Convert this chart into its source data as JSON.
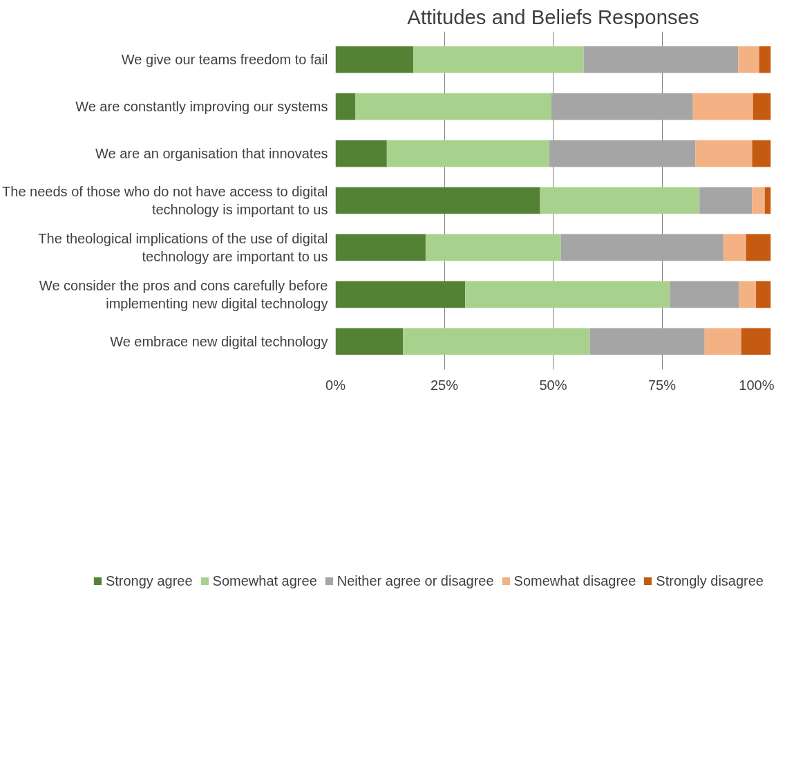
{
  "chart_data": {
    "type": "bar",
    "orientation": "horizontal",
    "stacked": true,
    "title": "Attitudes and Beliefs Responses",
    "categories": [
      "We give our teams freedom to fail",
      "We are constantly improving our systems",
      "We are an organisation that innovates",
      "The needs of those who do not have access to digital technology is important to us",
      "The theological implications of the use of digital technology are important to us",
      "We consider the pros and cons carefully before implementing new digital technology",
      "We embrace new digital technology"
    ],
    "series": [
      {
        "name": "Strongy agree",
        "color": "#548235",
        "values": [
          17.9,
          4.6,
          11.8,
          47.0,
          20.7,
          29.8,
          15.5
        ]
      },
      {
        "name": "Somewhat agree",
        "color": "#a9d18e",
        "values": [
          39.1,
          45.0,
          37.3,
          36.6,
          31.1,
          47.0,
          42.9
        ]
      },
      {
        "name": "Neither agree or disagree",
        "color": "#a5a5a5",
        "values": [
          35.5,
          32.5,
          33.6,
          12.1,
          37.3,
          15.9,
          26.4
        ]
      },
      {
        "name": "Somewhat disagree",
        "color": "#f4b183",
        "values": [
          4.8,
          13.8,
          13.0,
          2.9,
          5.2,
          3.9,
          8.4
        ]
      },
      {
        "name": "Strongly disagree",
        "color": "#c55a11",
        "values": [
          2.7,
          4.1,
          4.3,
          1.4,
          5.7,
          3.4,
          6.8
        ]
      }
    ],
    "xlim": [
      0,
      100
    ],
    "xticks": [
      {
        "value": 0,
        "label": "0%"
      },
      {
        "value": 25,
        "label": "25%"
      },
      {
        "value": 50,
        "label": "50%"
      },
      {
        "value": 75,
        "label": "75%"
      },
      {
        "value": 100,
        "label": "100%"
      }
    ],
    "grid": "x",
    "legend": "bottom"
  }
}
